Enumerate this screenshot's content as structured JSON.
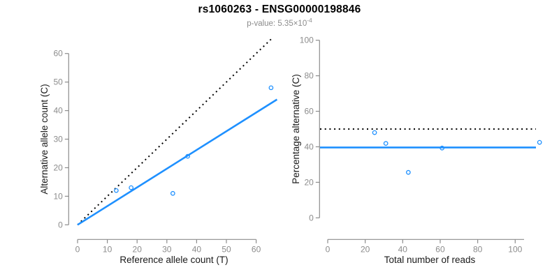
{
  "header": {
    "title": "rs1060263 - ENSG00000198846",
    "subtitle_main": "p-value: 5.35×10",
    "subtitle_exponent": "-4"
  },
  "colors": {
    "accent_blue": "#1E90FF",
    "dotted_black": "#000000",
    "axis_gray": "#8C8C8C",
    "title_black": "#000000"
  },
  "chart_data": [
    {
      "name": "allele-counts-panel",
      "type": "scatter",
      "xlabel": "Reference allele count (T)",
      "ylabel": "Alternative allele count (C)",
      "xlim": [
        0,
        67
      ],
      "ylim": [
        0,
        65
      ],
      "xticks": [
        0,
        10,
        20,
        30,
        40,
        50,
        60
      ],
      "yticks": [
        0,
        10,
        20,
        30,
        40,
        50,
        60
      ],
      "grid": false,
      "legend": "none",
      "points": [
        {
          "x": 13,
          "y": 12
        },
        {
          "x": 18,
          "y": 13
        },
        {
          "x": 32,
          "y": 11
        },
        {
          "x": 37,
          "y": 24
        },
        {
          "x": 65,
          "y": 48
        }
      ],
      "lines": [
        {
          "name": "identity-line",
          "dash": true,
          "color": "#000000",
          "x1": 0,
          "y1": 0,
          "x2": 65.3,
          "y2": 65.3
        },
        {
          "name": "fit-line",
          "dash": false,
          "color": "#1E90FF",
          "x1": 0,
          "y1": 0,
          "x2": 67,
          "y2": 43.9
        }
      ]
    },
    {
      "name": "reads-percentage-panel",
      "type": "scatter",
      "xlabel": "Total number of reads",
      "ylabel": "Percentage alternative (C)",
      "xlim": [
        0,
        115
      ],
      "ylim": [
        0,
        100
      ],
      "xticks": [
        0,
        20,
        40,
        60,
        80,
        100
      ],
      "yticks": [
        0,
        20,
        40,
        60,
        80,
        100
      ],
      "grid": false,
      "legend": "none",
      "points": [
        {
          "x": 25,
          "y": 48.0
        },
        {
          "x": 31,
          "y": 41.9
        },
        {
          "x": 43,
          "y": 25.6
        },
        {
          "x": 61,
          "y": 39.3
        },
        {
          "x": 113,
          "y": 42.5
        }
      ],
      "lines": [
        {
          "name": "expected-50pct-line",
          "dash": true,
          "color": "#000000",
          "hline": 50
        },
        {
          "name": "mean-percentage-line",
          "dash": false,
          "color": "#1E90FF",
          "hline": 39.6
        }
      ]
    }
  ]
}
